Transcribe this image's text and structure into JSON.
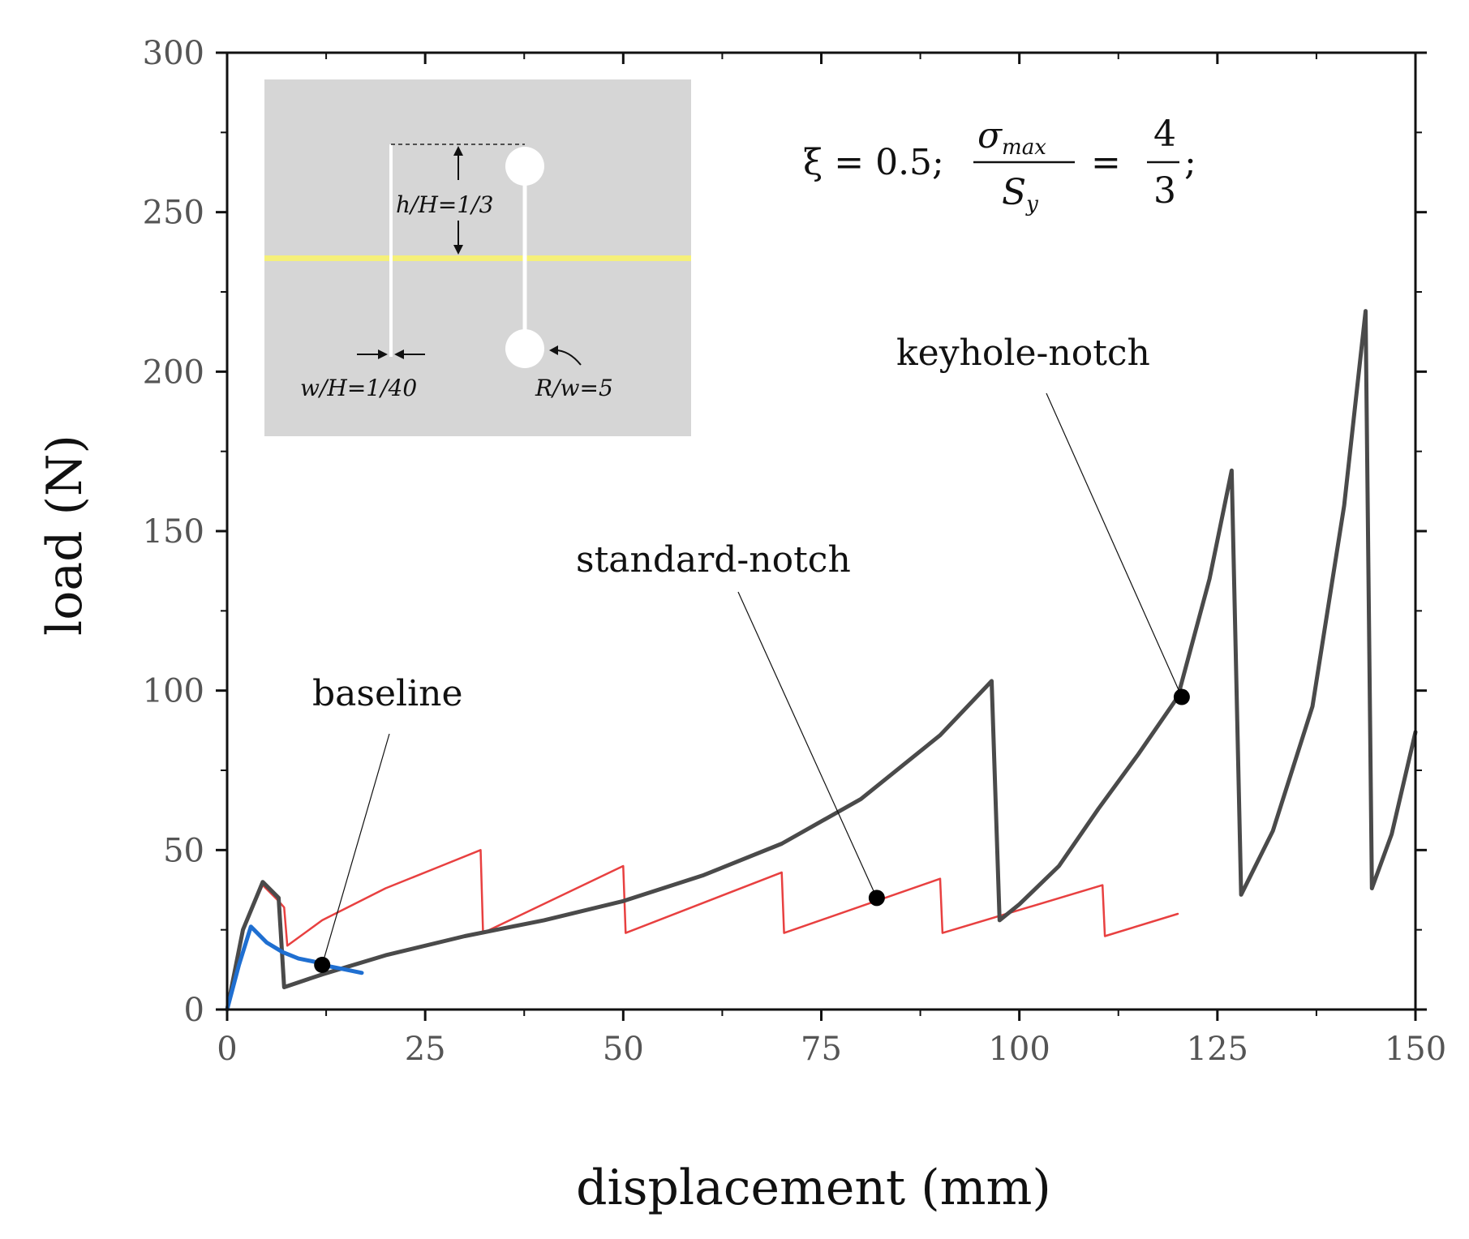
{
  "chart_data": {
    "type": "line",
    "title": "",
    "xlabel": "displacement (mm)",
    "ylabel": "load (N)",
    "xlim": [
      0,
      150
    ],
    "ylim": [
      0,
      300
    ],
    "xticks": [
      0,
      25,
      50,
      75,
      100,
      125,
      150
    ],
    "yticks": [
      0,
      50,
      100,
      150,
      200,
      250,
      300
    ],
    "grid": false,
    "series": [
      {
        "name": "keyhole-notch",
        "color": "#4a4a4a",
        "x": [
          0,
          2,
          4.5,
          6.5,
          7.2,
          12,
          20,
          30,
          40,
          50,
          60,
          70,
          80,
          90,
          96.5,
          97.5,
          100,
          105,
          110,
          115,
          120,
          124,
          126.8,
          128,
          132,
          137,
          141,
          143.7,
          144.5,
          147,
          150
        ],
        "y": [
          0,
          25,
          40,
          35,
          7,
          11,
          17,
          23,
          28,
          34,
          42,
          52,
          66,
          86,
          103,
          28,
          33,
          45,
          63,
          80,
          98,
          135,
          169,
          36,
          56,
          95,
          158,
          219,
          38,
          55,
          87
        ]
      },
      {
        "name": "standard-notch",
        "color": "#e84040",
        "x": [
          0,
          2,
          4.5,
          6.5,
          7.2,
          7.6,
          12,
          20,
          27,
          32,
          32.3,
          50,
          50.3,
          70,
          70.3,
          90,
          90.3,
          110.5,
          110.8,
          120
        ],
        "y": [
          0,
          25,
          39,
          34,
          32,
          20,
          28,
          38,
          45,
          50,
          24,
          45,
          24,
          43,
          24,
          41,
          24,
          39,
          23,
          30
        ]
      },
      {
        "name": "baseline",
        "color": "#1f6fd1",
        "x": [
          0,
          1.5,
          3,
          5,
          7,
          9,
          11,
          13,
          15,
          17
        ],
        "y": [
          0,
          14,
          26,
          21,
          18,
          16,
          15,
          13.5,
          12.5,
          11.5
        ]
      }
    ],
    "markers": [
      {
        "series": "baseline",
        "x": 12,
        "y": 14
      },
      {
        "series": "standard-notch",
        "x": 82,
        "y": 35
      },
      {
        "series": "keyhole-notch",
        "x": 120.5,
        "y": 98
      }
    ],
    "annotations": [
      {
        "text": "baseline",
        "target_series": "baseline"
      },
      {
        "text": "standard-notch",
        "target_series": "standard-notch"
      },
      {
        "text": "keyhole-notch",
        "target_series": "keyhole-notch"
      }
    ],
    "parameters": {
      "xi_label": "ξ = 0.5;",
      "sigma_num": "σ",
      "sigma_sub": "max",
      "sy_den": "S",
      "sy_sub": "y",
      "ratio_num": "4",
      "ratio_den": "3",
      "equals": "=",
      "trail": ";"
    },
    "inset": {
      "h_label": "h/H=1/3",
      "w_label": "w/H=1/40",
      "r_label": "R/w=5",
      "background": "#d6d6d6",
      "band_color": "#f5f07a"
    }
  }
}
